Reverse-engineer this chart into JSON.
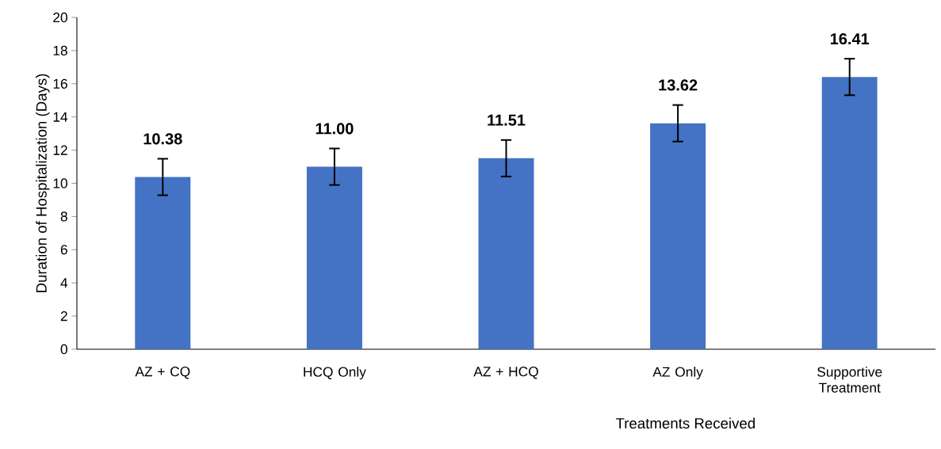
{
  "chart_data": {
    "type": "bar",
    "xlabel": "Treatments Received",
    "ylabel": "Duration of Hospitalization (Days)",
    "categories": [
      "AZ + CQ",
      "HCQ Only",
      "AZ + HCQ",
      "AZ Only",
      "Supportive Treatment"
    ],
    "values": [
      10.38,
      11.0,
      11.51,
      13.62,
      16.41
    ],
    "value_labels": [
      "10.38",
      "11.00",
      "11.51",
      "13.62",
      "16.41"
    ],
    "errors": [
      1.1,
      1.1,
      1.1,
      1.1,
      1.1
    ],
    "color": "#4472c4",
    "ylim": [
      0,
      20
    ],
    "yticks": [
      0,
      2,
      4,
      6,
      8,
      10,
      12,
      14,
      16,
      18,
      20
    ],
    "grid": false
  }
}
